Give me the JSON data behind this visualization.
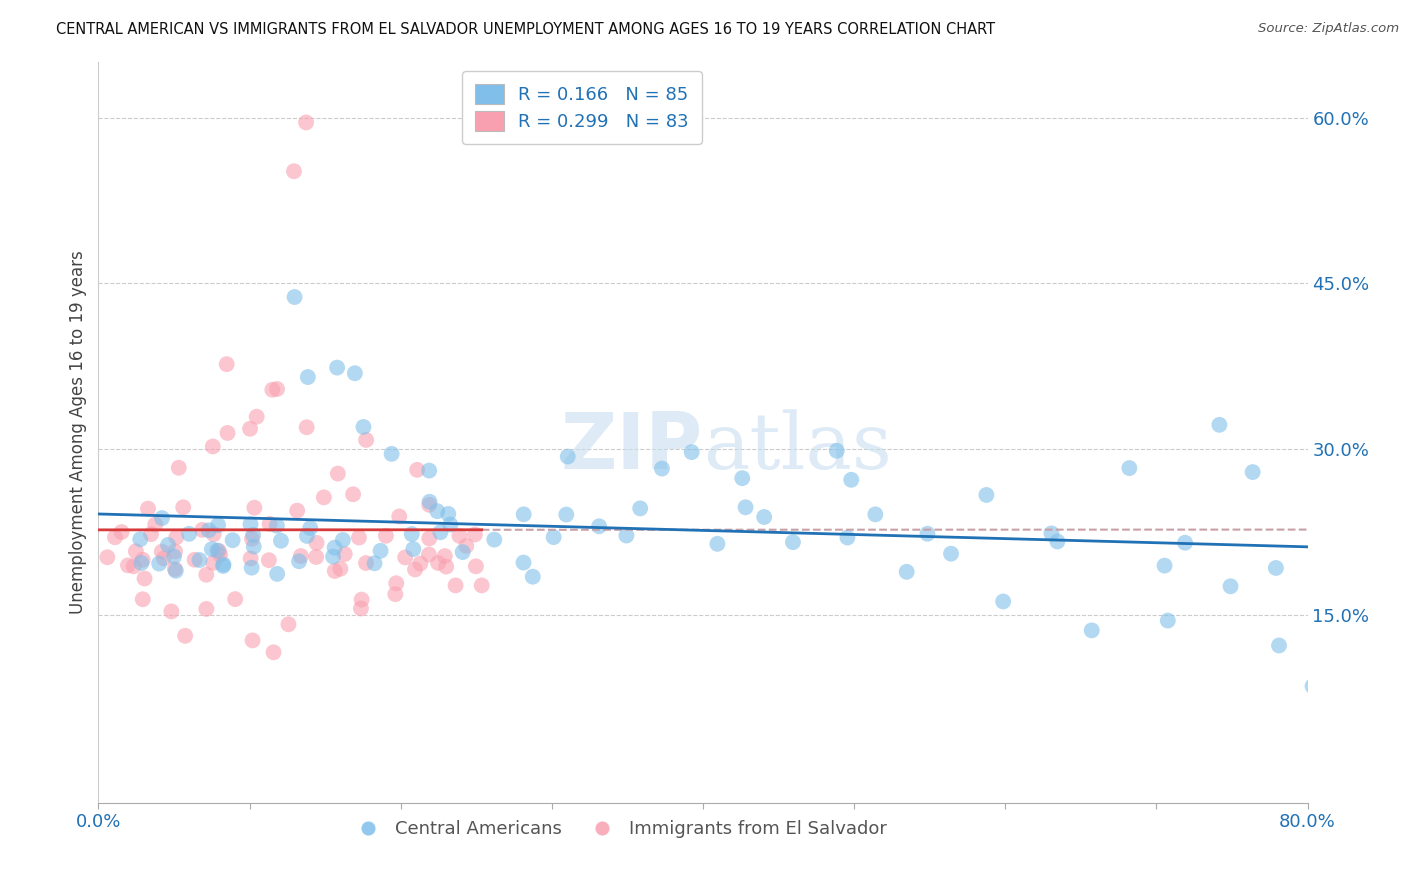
{
  "title": "CENTRAL AMERICAN VS IMMIGRANTS FROM EL SALVADOR UNEMPLOYMENT AMONG AGES 16 TO 19 YEARS CORRELATION CHART",
  "source": "Source: ZipAtlas.com",
  "ylabel": "Unemployment Among Ages 16 to 19 years",
  "xlim": [
    0.0,
    0.8
  ],
  "ylim": [
    -0.02,
    0.65
  ],
  "ytick_positions": [
    0.15,
    0.3,
    0.45,
    0.6
  ],
  "ytick_labels": [
    "15.0%",
    "30.0%",
    "45.0%",
    "60.0%"
  ],
  "blue_color": "#7fbfea",
  "pink_color": "#f9a0b0",
  "blue_line_color": "#2171b5",
  "pink_line_color": "#d63a3a",
  "dashed_color": "#c8a0a8",
  "watermark_color": "#c8dff0",
  "bottom_legend": [
    "Central Americans",
    "Immigrants from El Salvador"
  ],
  "R_blue": 0.166,
  "N_blue": 85,
  "R_pink": 0.299,
  "N_pink": 83,
  "blue_scatter": {
    "x": [
      0.02,
      0.03,
      0.04,
      0.04,
      0.05,
      0.05,
      0.06,
      0.06,
      0.07,
      0.07,
      0.07,
      0.08,
      0.08,
      0.08,
      0.09,
      0.09,
      0.1,
      0.1,
      0.1,
      0.11,
      0.11,
      0.12,
      0.12,
      0.13,
      0.13,
      0.14,
      0.14,
      0.15,
      0.15,
      0.16,
      0.16,
      0.17,
      0.17,
      0.18,
      0.18,
      0.19,
      0.2,
      0.2,
      0.21,
      0.21,
      0.22,
      0.22,
      0.23,
      0.23,
      0.24,
      0.25,
      0.26,
      0.27,
      0.28,
      0.29,
      0.3,
      0.3,
      0.31,
      0.33,
      0.35,
      0.36,
      0.38,
      0.39,
      0.41,
      0.42,
      0.43,
      0.45,
      0.46,
      0.48,
      0.5,
      0.5,
      0.52,
      0.54,
      0.55,
      0.57,
      0.58,
      0.6,
      0.63,
      0.65,
      0.7,
      0.72,
      0.74,
      0.76,
      0.78,
      0.79,
      0.8,
      0.63,
      0.68,
      0.71,
      0.75
    ],
    "y": [
      0.2,
      0.22,
      0.19,
      0.23,
      0.21,
      0.2,
      0.22,
      0.19,
      0.21,
      0.23,
      0.2,
      0.22,
      0.19,
      0.21,
      0.22,
      0.2,
      0.21,
      0.23,
      0.2,
      0.22,
      0.19,
      0.21,
      0.23,
      0.22,
      0.44,
      0.2,
      0.22,
      0.36,
      0.2,
      0.38,
      0.21,
      0.32,
      0.22,
      0.2,
      0.36,
      0.21,
      0.3,
      0.22,
      0.28,
      0.21,
      0.24,
      0.25,
      0.23,
      0.22,
      0.24,
      0.21,
      0.22,
      0.2,
      0.24,
      0.19,
      0.25,
      0.22,
      0.3,
      0.24,
      0.22,
      0.25,
      0.28,
      0.3,
      0.22,
      0.28,
      0.25,
      0.24,
      0.22,
      0.3,
      0.28,
      0.22,
      0.25,
      0.19,
      0.22,
      0.2,
      0.25,
      0.17,
      0.22,
      0.13,
      0.14,
      0.22,
      0.32,
      0.27,
      0.2,
      0.12,
      0.08,
      0.22,
      0.28,
      0.2,
      0.18
    ]
  },
  "pink_scatter": {
    "x": [
      0.01,
      0.01,
      0.02,
      0.02,
      0.02,
      0.03,
      0.03,
      0.03,
      0.03,
      0.04,
      0.04,
      0.04,
      0.05,
      0.05,
      0.05,
      0.06,
      0.06,
      0.06,
      0.07,
      0.07,
      0.07,
      0.08,
      0.08,
      0.08,
      0.09,
      0.09,
      0.09,
      0.1,
      0.1,
      0.1,
      0.11,
      0.11,
      0.12,
      0.12,
      0.12,
      0.13,
      0.13,
      0.14,
      0.14,
      0.15,
      0.15,
      0.16,
      0.16,
      0.17,
      0.17,
      0.18,
      0.18,
      0.19,
      0.2,
      0.2,
      0.21,
      0.21,
      0.22,
      0.22,
      0.23,
      0.23,
      0.24,
      0.24,
      0.25,
      0.25,
      0.13,
      0.14,
      0.08,
      0.09,
      0.1,
      0.11,
      0.12,
      0.05,
      0.06,
      0.07,
      0.03,
      0.04,
      0.15,
      0.16,
      0.17,
      0.18,
      0.19,
      0.2,
      0.21,
      0.22,
      0.23,
      0.24,
      0.25
    ],
    "y": [
      0.2,
      0.22,
      0.19,
      0.21,
      0.23,
      0.2,
      0.22,
      0.24,
      0.19,
      0.21,
      0.23,
      0.2,
      0.22,
      0.25,
      0.19,
      0.21,
      0.28,
      0.2,
      0.22,
      0.3,
      0.19,
      0.22,
      0.31,
      0.2,
      0.21,
      0.33,
      0.2,
      0.25,
      0.34,
      0.21,
      0.22,
      0.35,
      0.2,
      0.23,
      0.36,
      0.21,
      0.24,
      0.2,
      0.32,
      0.25,
      0.22,
      0.28,
      0.2,
      0.25,
      0.22,
      0.3,
      0.2,
      0.22,
      0.24,
      0.21,
      0.28,
      0.2,
      0.22,
      0.25,
      0.19,
      0.2,
      0.22,
      0.18,
      0.2,
      0.17,
      0.55,
      0.6,
      0.38,
      0.15,
      0.13,
      0.12,
      0.14,
      0.15,
      0.13,
      0.16,
      0.17,
      0.18,
      0.19,
      0.2,
      0.15,
      0.16,
      0.17,
      0.18,
      0.19,
      0.2,
      0.21,
      0.22,
      0.23
    ]
  }
}
